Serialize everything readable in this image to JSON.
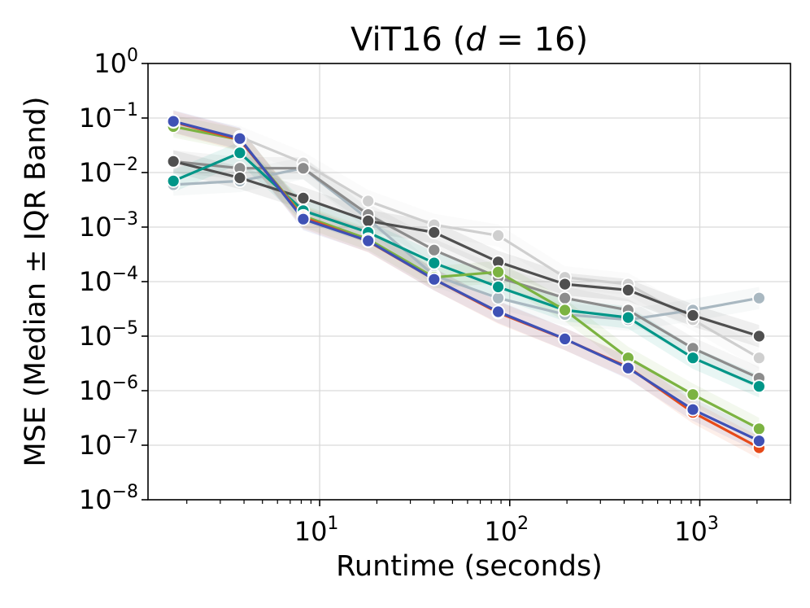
{
  "chart_data": {
    "type": "line",
    "title": "ViT16 (d = 16)",
    "title_parts": {
      "prefix": "ViT16 (",
      "var": "d",
      "eq": " = 16)"
    },
    "xlabel": "Runtime (seconds)",
    "ylabel": "MSE (Median ± IQR Band)",
    "xscale": "log",
    "yscale": "log",
    "xlim": [
      1.25,
      3000
    ],
    "ylim": [
      1e-08,
      1
    ],
    "x_ticks": [
      {
        "value": 10,
        "base": "10",
        "exp": "1"
      },
      {
        "value": 100,
        "base": "10",
        "exp": "2"
      },
      {
        "value": 1000,
        "base": "10",
        "exp": "3"
      }
    ],
    "y_ticks": [
      {
        "value": 1,
        "base": "10",
        "exp": "0"
      },
      {
        "value": 0.1,
        "base": "10",
        "exp": "−1"
      },
      {
        "value": 0.01,
        "base": "10",
        "exp": "−2"
      },
      {
        "value": 0.001,
        "base": "10",
        "exp": "−3"
      },
      {
        "value": 0.0001,
        "base": "10",
        "exp": "−4"
      },
      {
        "value": 1e-05,
        "base": "10",
        "exp": "−5"
      },
      {
        "value": 1e-06,
        "base": "10",
        "exp": "−6"
      },
      {
        "value": 1e-07,
        "base": "10",
        "exp": "−7"
      },
      {
        "value": 1e-08,
        "base": "10",
        "exp": "−8"
      }
    ],
    "grid": true,
    "x": [
      1.7,
      3.8,
      8.2,
      18,
      40,
      87,
      195,
      420,
      920,
      2050
    ],
    "series": [
      {
        "name": "light-gray",
        "color": "#cfcfcf",
        "values": [
          0.075,
          0.045,
          0.015,
          0.003,
          0.0011,
          0.0007,
          0.00012,
          9e-05,
          2e-05,
          4e-06
        ]
      },
      {
        "name": "slate",
        "color": "#a9b8c1",
        "values": [
          0.006,
          0.007,
          0.012,
          0.0014,
          0.00013,
          5e-05,
          2.5e-05,
          2e-05,
          3e-05,
          5e-05
        ]
      },
      {
        "name": "mid-gray",
        "color": "#8c8c8c",
        "values": [
          0.016,
          0.012,
          0.012,
          0.0017,
          0.00038,
          0.00012,
          5e-05,
          3e-05,
          6e-06,
          1.7e-06
        ]
      },
      {
        "name": "dark-gray",
        "color": "#4f4f4f",
        "values": [
          0.016,
          0.008,
          0.0034,
          0.0013,
          0.0008,
          0.00023,
          9e-05,
          7e-05,
          2.4e-05,
          1e-05
        ]
      },
      {
        "name": "teal",
        "color": "#009688",
        "values": [
          0.007,
          0.023,
          0.002,
          0.0008,
          0.00022,
          8e-05,
          3e-05,
          2.2e-05,
          4e-06,
          1.2e-06
        ]
      },
      {
        "name": "green",
        "color": "#7cb342",
        "values": [
          0.07,
          0.04,
          0.0016,
          0.0006,
          0.00012,
          0.00015,
          3e-05,
          4e-06,
          8.5e-07,
          2e-07
        ]
      },
      {
        "name": "red",
        "color": "#e64a19",
        "values": [
          0.085,
          0.04,
          0.0015,
          0.00055,
          0.00011,
          2.7e-05,
          8.8e-06,
          2.7e-06,
          4e-07,
          9e-08
        ]
      },
      {
        "name": "indigo",
        "color": "#3f51b5",
        "values": [
          0.087,
          0.042,
          0.0014,
          0.00056,
          0.00011,
          2.8e-05,
          8.9e-06,
          2.6e-06,
          4.5e-07,
          1.2e-07
        ]
      }
    ]
  }
}
